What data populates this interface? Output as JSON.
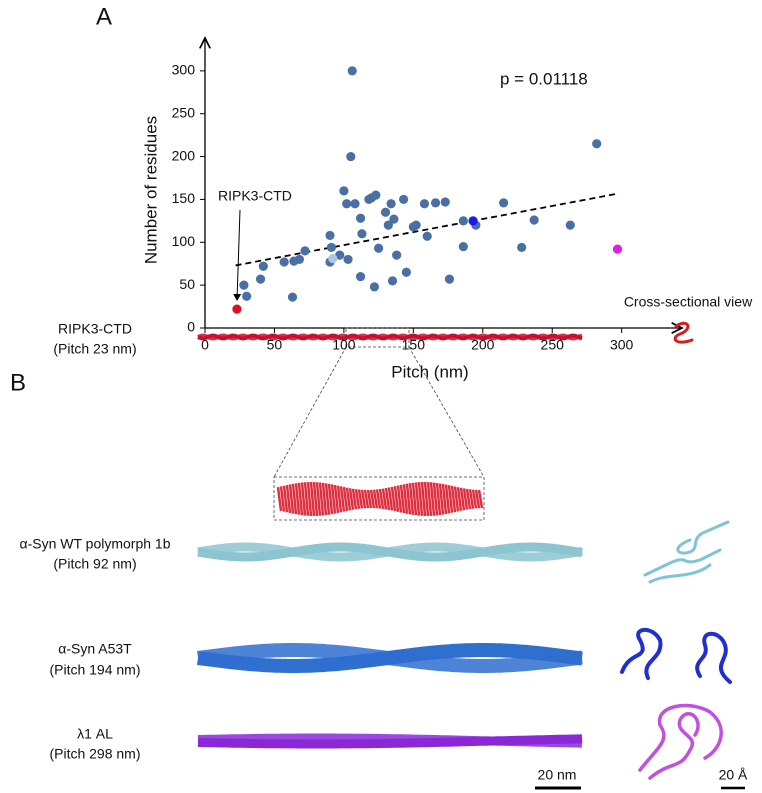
{
  "panel_labels": [
    "A",
    "B"
  ],
  "chart_data": {
    "type": "scatter",
    "x_label": "Pitch (nm)",
    "y_label": "Number of residues",
    "annotation": "p = 0.01118",
    "callout": "RIPK3-CTD",
    "xlim": [
      0,
      342
    ],
    "ylim": [
      0,
      336
    ],
    "xticks": [
      0,
      50,
      100,
      150,
      200,
      250,
      300
    ],
    "yticks": [
      0,
      50,
      100,
      150,
      200,
      250,
      300
    ],
    "color": "#4a6fa5",
    "x": [
      28,
      30,
      40,
      42,
      57,
      63,
      64,
      68,
      72,
      90,
      90,
      91,
      97,
      103,
      100,
      102,
      105,
      106,
      108,
      112,
      113,
      112,
      118,
      120,
      125,
      122,
      123,
      130,
      132,
      134,
      135,
      136,
      150,
      145,
      152,
      158,
      160,
      166,
      173,
      176,
      186,
      186,
      195,
      263,
      282,
      143,
      138,
      215,
      228,
      237
    ],
    "y": [
      50,
      37,
      57,
      72,
      77,
      36,
      78,
      80,
      90,
      108,
      77,
      94,
      85,
      80,
      160,
      145,
      200,
      300,
      145,
      128,
      110,
      60,
      150,
      152,
      93,
      48,
      155,
      135,
      120,
      145,
      55,
      127,
      118,
      65,
      120,
      145,
      107,
      146,
      147,
      57,
      125,
      95,
      120,
      120,
      215,
      150,
      85,
      146,
      94,
      126
    ],
    "highlights": [
      {
        "x": 23,
        "y": 22,
        "color": "#e01020"
      },
      {
        "x": 92,
        "y": 81,
        "color": "#b0c4e4"
      },
      {
        "x": 193,
        "y": 125,
        "color": "#1a1aee"
      },
      {
        "x": 297,
        "y": 92,
        "color": "#e020e0"
      }
    ],
    "trendline": {
      "x": [
        22,
        298
      ],
      "y": [
        73,
        157
      ]
    }
  },
  "panel_b": {
    "header": "Cross-sectional view",
    "rows": [
      {
        "name": "RIPK3-CTD",
        "pitch": "(Pitch 23 nm)"
      },
      {
        "name": "α-Syn WT polymorph 1b",
        "pitch": "(Pitch 92 nm)"
      },
      {
        "name": "α-Syn A53T",
        "pitch": "(Pitch 194 nm)"
      },
      {
        "name": "λ1 AL",
        "pitch": "(Pitch 298 nm)"
      }
    ],
    "scale_fibril": "20 nm",
    "scale_section": "20 Å"
  }
}
